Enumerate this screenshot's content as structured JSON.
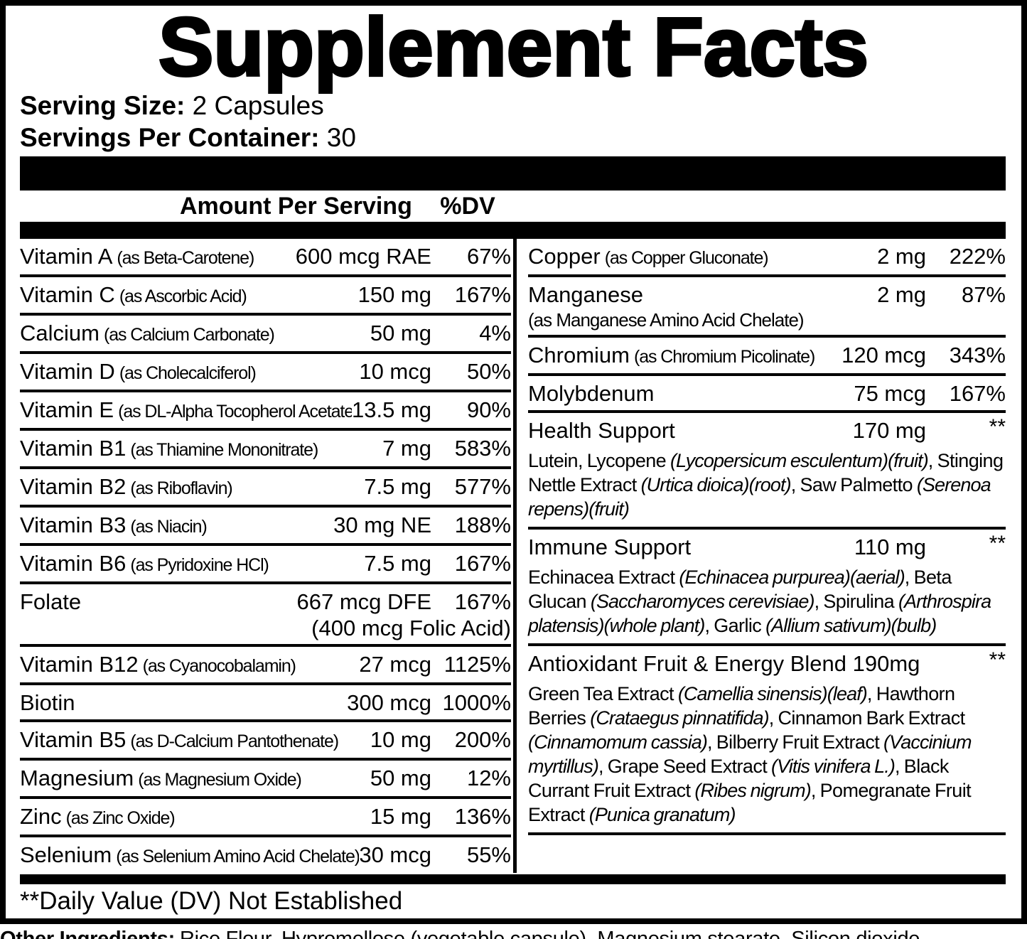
{
  "title": "Supplement Facts",
  "serving": {
    "size_label": "Serving Size:",
    "size_value": "2 Capsules",
    "per_container_label": "Servings Per Container:",
    "per_container_value": "30"
  },
  "table_header": {
    "amount": "Amount Per Serving",
    "dv": "%DV"
  },
  "left_rows": [
    {
      "name": "Vitamin A",
      "form": "(as Beta-Carotene)",
      "amount": "600 mcg RAE",
      "dv": "67%"
    },
    {
      "name": "Vitamin C",
      "form": "(as Ascorbic Acid)",
      "amount": "150 mg",
      "dv": "167%"
    },
    {
      "name": "Calcium",
      "form": "(as Calcium Carbonate)",
      "amount": "50 mg",
      "dv": "4%"
    },
    {
      "name": "Vitamin D",
      "form": "(as Cholecalciferol)",
      "amount": "10 mcg",
      "dv": "50%"
    },
    {
      "name": "Vitamin E",
      "form": "(as DL-Alpha Tocopherol Acetate)",
      "amount": "13.5 mg",
      "dv": "90%"
    },
    {
      "name": "Vitamin B1",
      "form": "(as Thiamine Mononitrate)",
      "amount": "7 mg",
      "dv": "583%"
    },
    {
      "name": "Vitamin B2",
      "form": "(as Riboflavin)",
      "amount": "7.5 mg",
      "dv": "577%"
    },
    {
      "name": "Vitamin B3",
      "form": "(as Niacin)",
      "amount": "30 mg NE",
      "dv": "188%"
    },
    {
      "name": "Vitamin B6",
      "form": "(as Pyridoxine HCl)",
      "amount": "7.5 mg",
      "dv": "167%"
    },
    {
      "name": "Folate",
      "form": "",
      "amount": "667 mcg DFE",
      "dv": "167%",
      "sub": "(400 mcg Folic Acid)"
    },
    {
      "name": "Vitamin B12",
      "form": "(as Cyanocobalamin)",
      "amount": "27 mcg",
      "dv": "1125%"
    },
    {
      "name": "Biotin",
      "form": "",
      "amount": "300 mcg",
      "dv": "1000%"
    },
    {
      "name": "Vitamin B5",
      "form": "(as D-Calcium Pantothenate)",
      "amount": "10 mg",
      "dv": "200%"
    },
    {
      "name": "Magnesium",
      "form": "(as Magnesium Oxide)",
      "amount": "50 mg",
      "dv": "12%"
    },
    {
      "name": "Zinc",
      "form": "(as Zinc Oxide)",
      "amount": "15 mg",
      "dv": "136%"
    },
    {
      "name": "Selenium",
      "form": "(as Selenium Amino Acid Chelate)",
      "amount": "30 mcg",
      "dv": "55%"
    }
  ],
  "right_rows": [
    {
      "name": "Copper",
      "form": "(as Copper Gluconate)",
      "amount": "2 mg",
      "dv": "222%"
    },
    {
      "name": "Manganese",
      "form": "",
      "amount": "2 mg",
      "dv": "87%",
      "sub": "(as Manganese Amino Acid Chelate)"
    },
    {
      "name": "Chromium",
      "form": "(as Chromium Picolinate)",
      "amount": "120 mcg",
      "dv": "343%"
    },
    {
      "name": "Molybdenum",
      "form": "",
      "amount": "75 mcg",
      "dv": "167%"
    }
  ],
  "blends": [
    {
      "name": "Health Support",
      "amount": "170 mg",
      "dv": "**",
      "ingredients": [
        {
          "t": "Lutein, Lycopene "
        },
        {
          "t": "(Lycopersicum esculentum)(fruit)",
          "i": true
        },
        {
          "t": ", Stinging Nettle Extract "
        },
        {
          "t": "(Urtica dioica)(root)",
          "i": true
        },
        {
          "t": ", Saw Palmetto "
        },
        {
          "t": "(Serenoa repens)(fruit)",
          "i": true
        }
      ]
    },
    {
      "name": "Immune Support",
      "amount": "110 mg",
      "dv": "**",
      "ingredients": [
        {
          "t": "Echinacea Extract "
        },
        {
          "t": "(Echinacea purpurea)(aerial)",
          "i": true
        },
        {
          "t": ", Beta Glucan "
        },
        {
          "t": "(Saccharomyces cerevisiae)",
          "i": true
        },
        {
          "t": ", Spirulina "
        },
        {
          "t": "(Arthrospira platensis)(whole plant)",
          "i": true
        },
        {
          "t": ", Garlic "
        },
        {
          "t": "(Allium sativum)(bulb)",
          "i": true
        }
      ]
    },
    {
      "name": "Antioxidant Fruit & Energy Blend 190mg",
      "amount": "",
      "dv": "**",
      "ingredients": [
        {
          "t": "Green Tea Extract "
        },
        {
          "t": "(Camellia sinensis)(leaf)",
          "i": true
        },
        {
          "t": ", Hawthorn Berries "
        },
        {
          "t": "(Crataegus pinnatifida)",
          "i": true
        },
        {
          "t": ", Cinnamon Bark Extract "
        },
        {
          "t": "(Cinnamomum cassia)",
          "i": true
        },
        {
          "t": ", Bilberry Fruit Extract "
        },
        {
          "t": "(Vaccinium myrtillus)",
          "i": true
        },
        {
          "t": ", Grape Seed Extract "
        },
        {
          "t": "(Vitis vinifera L.)",
          "i": true
        },
        {
          "t": ", Black Currant Fruit Extract "
        },
        {
          "t": "(Ribes nigrum)",
          "i": true
        },
        {
          "t": ", Pomegranate Fruit Extract "
        },
        {
          "t": "(Punica granatum)",
          "i": true
        }
      ]
    }
  ],
  "footnote": "**Daily Value (DV) Not Established",
  "other_ingredients": {
    "label": "Other Ingredients:",
    "text": "Rice Flour, Hypromellose (vegetable capsule), Magnesium stearate, Silicon dioxide."
  },
  "colors": {
    "ink": "#000000",
    "paper": "#ffffff"
  }
}
